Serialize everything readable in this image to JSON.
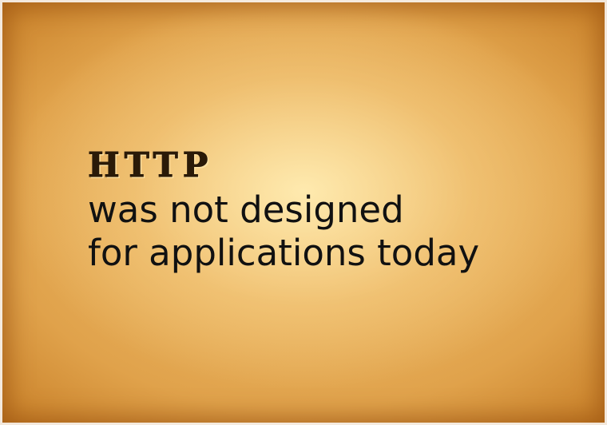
{
  "slide": {
    "headline": "HTTP",
    "lines": [
      "was not designed",
      "for applications today"
    ]
  },
  "colors": {
    "parchment_center": "#f7dca0",
    "parchment_edge": "#b56e20",
    "text": "#111111"
  }
}
